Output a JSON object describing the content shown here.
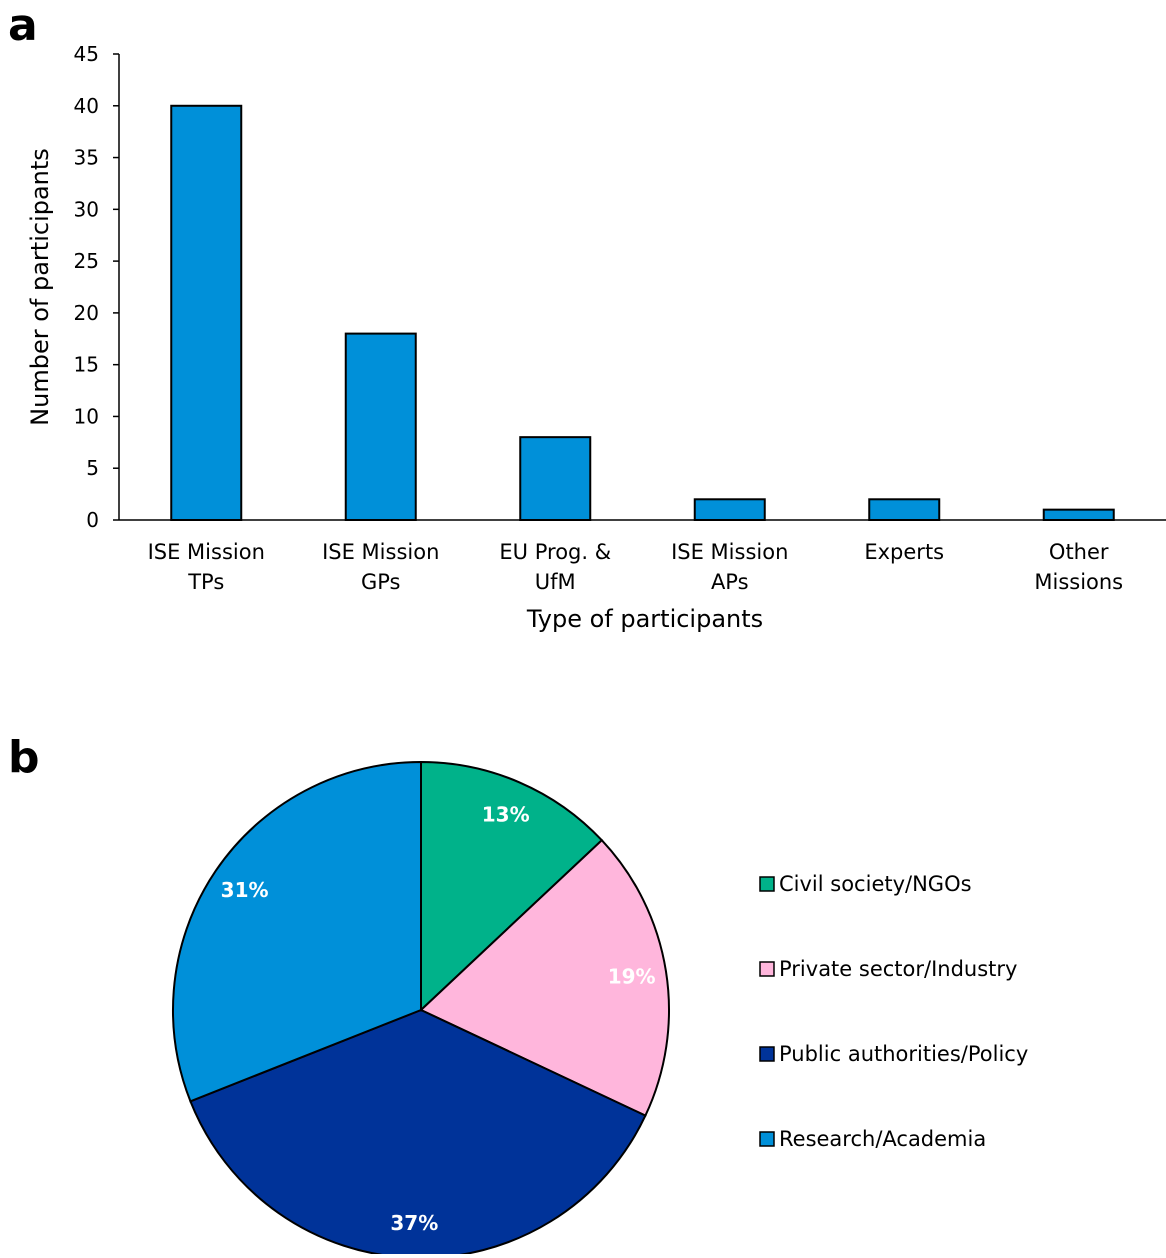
{
  "panels": {
    "a_label": "a",
    "b_label": "b"
  },
  "chart_data": [
    {
      "type": "bar",
      "categories": [
        [
          "ISE Mission",
          "TPs"
        ],
        [
          "ISE Mission",
          "GPs"
        ],
        [
          "EU Prog. &",
          "UfM"
        ],
        [
          "ISE Mission",
          "APs"
        ],
        [
          "Experts"
        ],
        [
          "Other",
          "Missions"
        ]
      ],
      "values": [
        40,
        18,
        8,
        2,
        2,
        1
      ],
      "xlabel": "Type of participants",
      "ylabel": "Number of participants",
      "ylim": [
        0,
        45
      ],
      "yticks": [
        0,
        5,
        10,
        15,
        20,
        25,
        30,
        35,
        40,
        45
      ],
      "bar_color": "#0090d9",
      "grid": false
    },
    {
      "type": "pie",
      "slices": [
        {
          "name": "Civil society/NGOs",
          "value": 13,
          "label": "13%",
          "color": "#00b28a"
        },
        {
          "name": "Private sector/Industry",
          "value": 19,
          "label": "19%",
          "color": "#ffb6dc"
        },
        {
          "name": "Public authorities/Policy",
          "value": 37,
          "label": "37%",
          "color": "#003399"
        },
        {
          "name": "Research/Academia",
          "value": 31,
          "label": "31%",
          "color": "#0090d9"
        }
      ],
      "legend_position": "right"
    }
  ]
}
